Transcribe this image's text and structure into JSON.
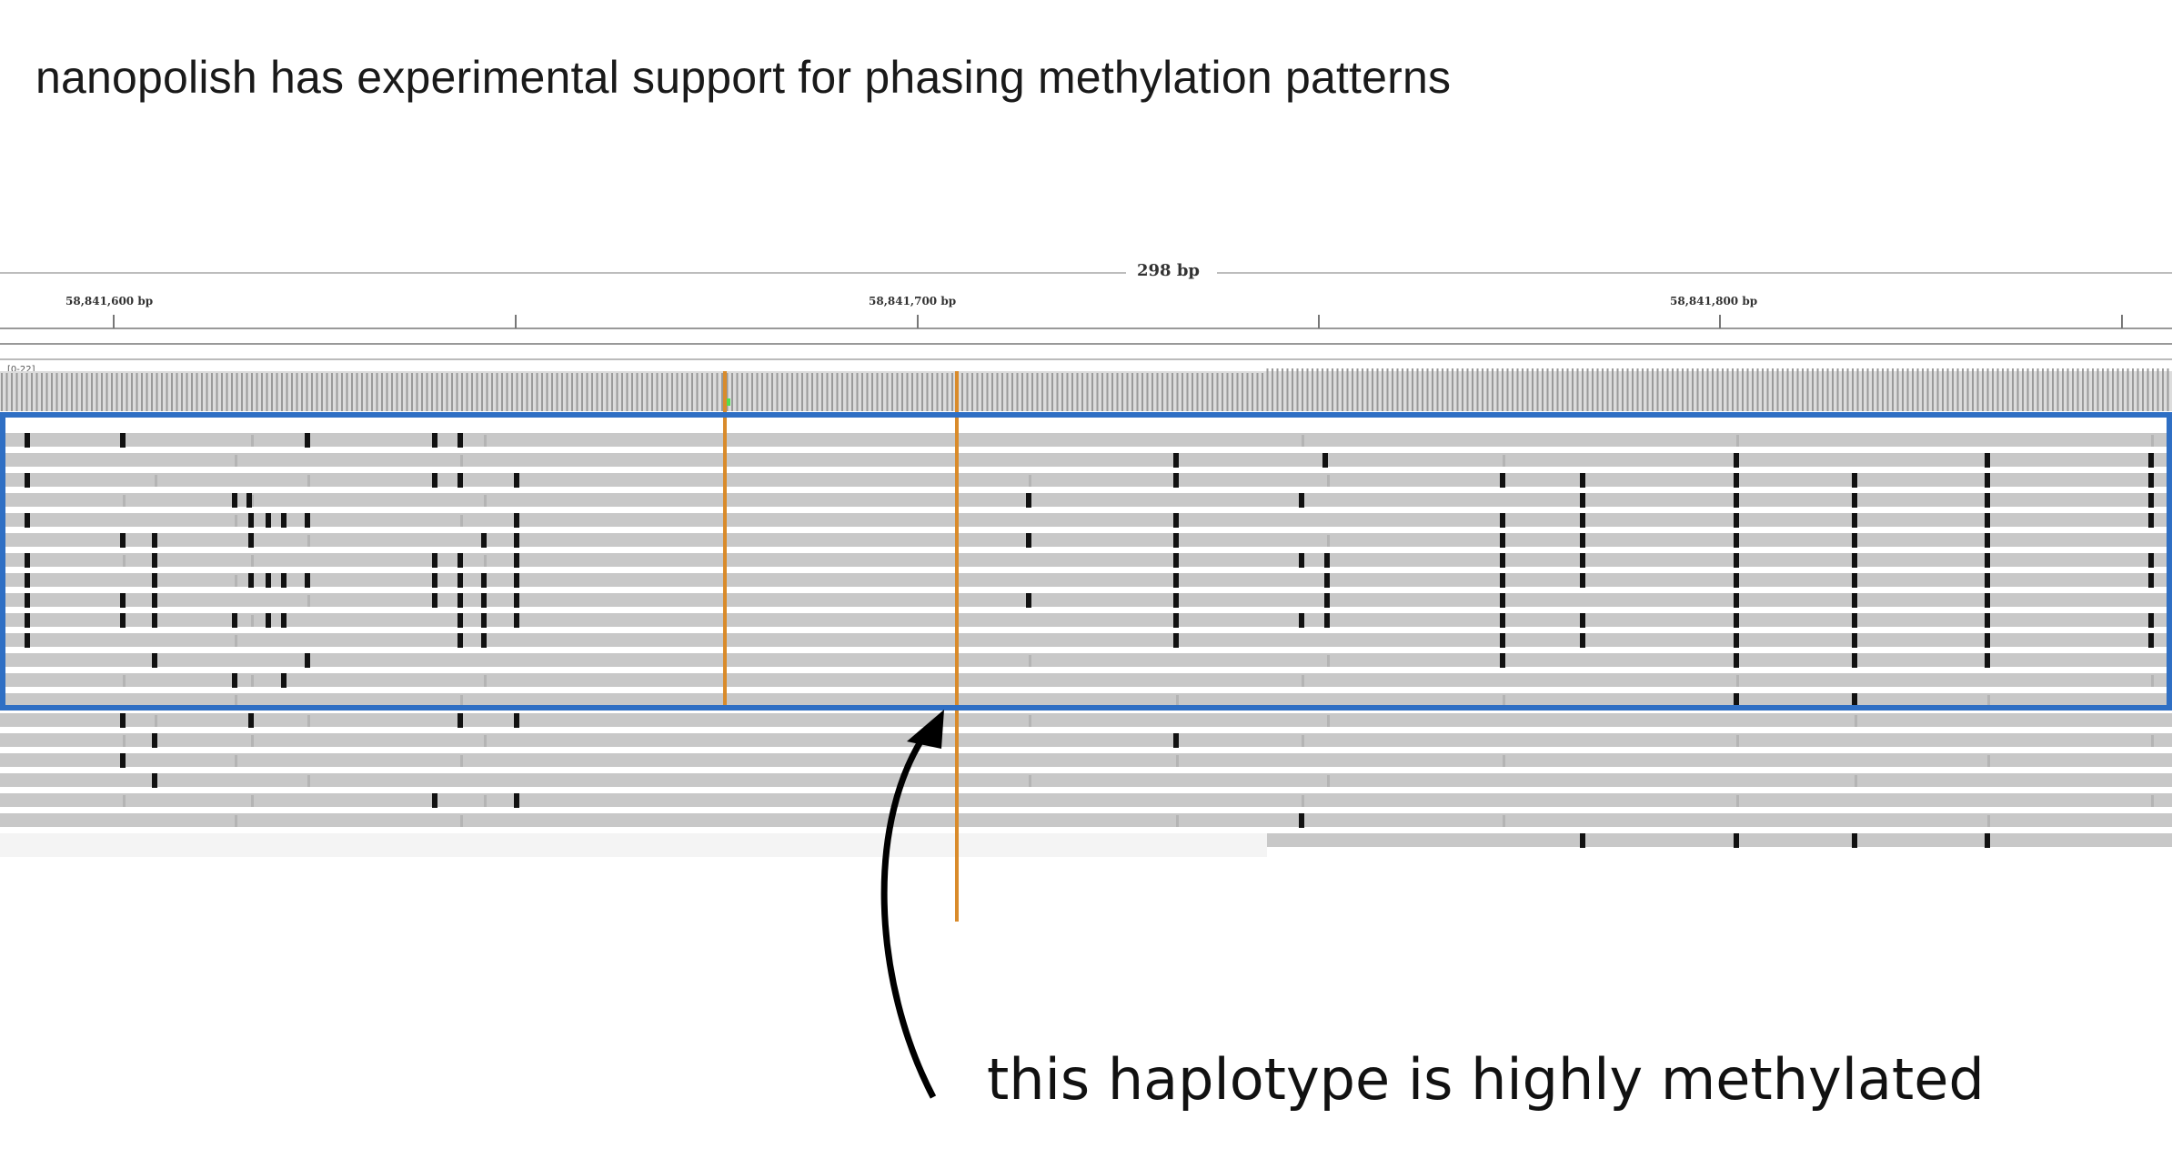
{
  "heading": "nanopolish has experimental support for phasing methylation patterns",
  "callout": "this haplotype is highly methylated",
  "ruler": {
    "span_label": "298 bp",
    "positions": [
      "58,841,600 bp",
      "58,841,700 bp",
      "58,841,800 bp"
    ]
  },
  "coverage": {
    "scale_label": "[0-22]"
  },
  "colors": {
    "read": "#c8c8c8",
    "methylation_mark": "#111111",
    "faint_mark": "#a0a0a0",
    "variant_line": "#d98b2b",
    "highlight_box": "#2f6fc4",
    "coverage_bar": "#9a9a9a",
    "coverage_snp_accent": "#4fe04f",
    "arrow": "#000000"
  },
  "icons": [
    "curved-arrow-icon"
  ]
}
